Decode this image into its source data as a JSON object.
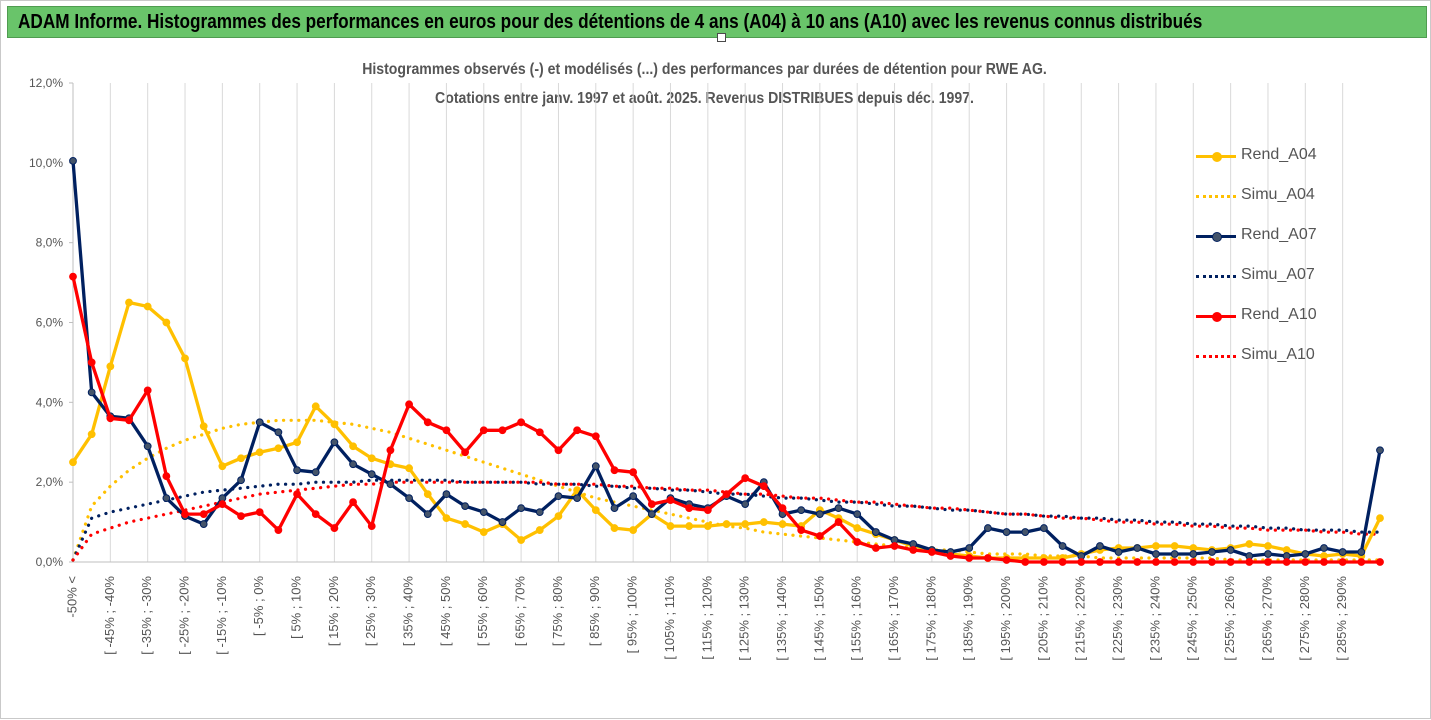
{
  "header": {
    "title": "ADAM Informe. Histogrammes des performances en euros pour des détentions de 4 ans (A04) à 10 ans (A10) avec les revenus connus distribués"
  },
  "chart_data": {
    "type": "line",
    "title_line1": "Histogrammes observés (-) et modélisés (...) des performances par durées de détention pour RWE AG.",
    "title_line2": "Cotations entre janv. 1997 et août. 2025. Revenus DISTRIBUES depuis déc. 1997.",
    "ylim": [
      0,
      12
    ],
    "y_tick_labels": [
      "0,0%",
      "2,0%",
      "4,0%",
      "6,0%",
      "8,0%",
      "10,0%",
      "12,0%"
    ],
    "y_unit": "%",
    "grid": "vertical",
    "legend_position": "right",
    "x_labels": [
      "-50% <",
      "[ -45% ; -40%",
      "[ -35% ; -30%",
      "[ -25% ; -20%",
      "[ -15% ; -10%",
      "[ -5% ; 0%",
      "[ 5% ; 10%",
      "[ 15% ; 20%",
      "[ 25% ; 30%",
      "[ 35% ; 40%",
      "[ 45% ; 50%",
      "[ 55% ; 60%",
      "[ 65% ; 70%",
      "[ 75% ; 80%",
      "[ 85% ; 90%",
      "[ 95% ; 100%",
      "[ 105% ; 110%",
      "[ 115% ; 120%",
      "[ 125% ; 130%",
      "[ 135% ; 140%",
      "[ 145% ; 150%",
      "[ 155% ; 160%",
      "[ 165% ; 170%",
      "[ 175% ; 180%",
      "[ 185% ; 190%",
      "[ 195% ; 200%",
      "[ 205% ; 210%",
      "[ 215% ; 220%",
      "[ 225% ; 230%",
      "[ 235% ; 240%",
      "[ 245% ; 250%",
      "[ 255% ; 260%",
      "[ 265% ; 270%",
      "[ 275% ; 280%",
      "[ 285% ; 290%"
    ],
    "series": [
      {
        "name": "Rend_A04",
        "color": "#ffc000",
        "style": "solid",
        "markers": true,
        "values": [
          2.5,
          3.2,
          4.9,
          6.5,
          6.4,
          6.0,
          5.1,
          3.4,
          2.4,
          2.6,
          2.75,
          2.85,
          3.0,
          3.9,
          3.45,
          2.9,
          2.6,
          2.45,
          2.35,
          1.7,
          1.1,
          0.95,
          0.75,
          0.95,
          0.55,
          0.8,
          1.15,
          1.8,
          1.3,
          0.85,
          0.8,
          1.2,
          0.9,
          0.9,
          0.9,
          0.95,
          0.95,
          1.0,
          0.95,
          0.9,
          1.3,
          1.1,
          0.85,
          0.7,
          0.55,
          0.4,
          0.3,
          0.2,
          0.15,
          0.1,
          0.1,
          0.1,
          0.1,
          0.1,
          0.2,
          0.3,
          0.35,
          0.35,
          0.4,
          0.4,
          0.35,
          0.3,
          0.35,
          0.45,
          0.4,
          0.3,
          0.2,
          0.15,
          0.2,
          0.15,
          1.1
        ]
      },
      {
        "name": "Simu_A04",
        "color": "#ffc000",
        "style": "dotted",
        "markers": false,
        "values": [
          0.05,
          1.4,
          1.9,
          2.3,
          2.6,
          2.85,
          3.05,
          3.2,
          3.35,
          3.45,
          3.5,
          3.55,
          3.55,
          3.55,
          3.5,
          3.45,
          3.35,
          3.25,
          3.1,
          2.95,
          2.8,
          2.65,
          2.5,
          2.35,
          2.2,
          2.05,
          1.9,
          1.75,
          1.6,
          1.5,
          1.4,
          1.3,
          1.2,
          1.1,
          1.0,
          0.9,
          0.85,
          0.75,
          0.7,
          0.65,
          0.6,
          0.55,
          0.5,
          0.45,
          0.4,
          0.35,
          0.3,
          0.3,
          0.25,
          0.2,
          0.2,
          0.2,
          0.15,
          0.15,
          0.15,
          0.1,
          0.1,
          0.1,
          0.1,
          0.1,
          0.1,
          0.1,
          0.05,
          0.05,
          0.05,
          0.05,
          0.05,
          0.05,
          0.05,
          0.05,
          0.05
        ]
      },
      {
        "name": "Rend_A07",
        "color": "#002060",
        "style": "solid",
        "markers": true,
        "values": [
          10.05,
          4.25,
          3.65,
          3.6,
          2.9,
          1.6,
          1.15,
          0.95,
          1.6,
          2.05,
          3.5,
          3.25,
          2.3,
          2.25,
          3.0,
          2.45,
          2.2,
          1.95,
          1.6,
          1.2,
          1.7,
          1.4,
          1.25,
          1.0,
          1.35,
          1.25,
          1.65,
          1.6,
          2.4,
          1.35,
          1.65,
          1.2,
          1.6,
          1.45,
          1.35,
          1.65,
          1.45,
          2.0,
          1.2,
          1.3,
          1.2,
          1.35,
          1.2,
          0.75,
          0.55,
          0.45,
          0.3,
          0.25,
          0.35,
          0.85,
          0.75,
          0.75,
          0.85,
          0.4,
          0.15,
          0.4,
          0.25,
          0.35,
          0.2,
          0.2,
          0.2,
          0.25,
          0.3,
          0.15,
          0.2,
          0.15,
          0.2,
          0.35,
          0.25,
          0.25,
          2.8
        ]
      },
      {
        "name": "Simu_A07",
        "color": "#002060",
        "style": "dotted",
        "markers": false,
        "values": [
          0.05,
          1.1,
          1.25,
          1.35,
          1.45,
          1.55,
          1.65,
          1.75,
          1.8,
          1.85,
          1.9,
          1.95,
          1.95,
          2.0,
          2.0,
          2.0,
          2.05,
          2.05,
          2.05,
          2.05,
          2.05,
          2.0,
          2.0,
          2.0,
          2.0,
          1.95,
          1.95,
          1.95,
          1.9,
          1.9,
          1.85,
          1.85,
          1.8,
          1.8,
          1.75,
          1.7,
          1.7,
          1.65,
          1.6,
          1.6,
          1.55,
          1.5,
          1.5,
          1.45,
          1.4,
          1.4,
          1.35,
          1.3,
          1.3,
          1.25,
          1.2,
          1.2,
          1.15,
          1.15,
          1.1,
          1.1,
          1.05,
          1.05,
          1.0,
          1.0,
          0.95,
          0.95,
          0.9,
          0.9,
          0.85,
          0.85,
          0.8,
          0.8,
          0.8,
          0.75,
          0.75
        ]
      },
      {
        "name": "Rend_A10",
        "color": "#ff0000",
        "style": "solid",
        "markers": true,
        "values": [
          7.15,
          5.0,
          3.6,
          3.55,
          4.3,
          2.15,
          1.2,
          1.2,
          1.45,
          1.15,
          1.25,
          0.8,
          1.7,
          1.2,
          0.85,
          1.5,
          0.9,
          2.8,
          3.95,
          3.5,
          3.3,
          2.75,
          3.3,
          3.3,
          3.5,
          3.25,
          2.8,
          3.3,
          3.15,
          2.3,
          2.25,
          1.45,
          1.55,
          1.35,
          1.3,
          1.7,
          2.1,
          1.9,
          1.35,
          0.8,
          0.65,
          1.0,
          0.5,
          0.35,
          0.4,
          0.3,
          0.25,
          0.15,
          0.1,
          0.1,
          0.05,
          0.0,
          0.0,
          0.0,
          0.0,
          0.0,
          0.0,
          0.0,
          0.0,
          0.0,
          0.0,
          0.0,
          0.0,
          0.0,
          0.0,
          0.0,
          0.0,
          0.0,
          0.0,
          0.0,
          0.0
        ]
      },
      {
        "name": "Simu_A10",
        "color": "#ff0000",
        "style": "dotted",
        "markers": false,
        "values": [
          0.05,
          0.7,
          0.85,
          1.0,
          1.1,
          1.2,
          1.3,
          1.4,
          1.5,
          1.6,
          1.7,
          1.75,
          1.8,
          1.85,
          1.9,
          1.95,
          1.95,
          2.0,
          2.0,
          2.0,
          2.0,
          2.0,
          2.0,
          2.0,
          2.0,
          2.0,
          1.95,
          1.95,
          1.95,
          1.9,
          1.9,
          1.85,
          1.85,
          1.8,
          1.8,
          1.75,
          1.7,
          1.7,
          1.65,
          1.6,
          1.6,
          1.55,
          1.5,
          1.5,
          1.45,
          1.4,
          1.35,
          1.35,
          1.3,
          1.25,
          1.2,
          1.2,
          1.15,
          1.1,
          1.1,
          1.05,
          1.0,
          1.0,
          0.95,
          0.95,
          0.9,
          0.9,
          0.85,
          0.85,
          0.8,
          0.8,
          0.8,
          0.75,
          0.75,
          0.7,
          0.7
        ]
      }
    ]
  }
}
